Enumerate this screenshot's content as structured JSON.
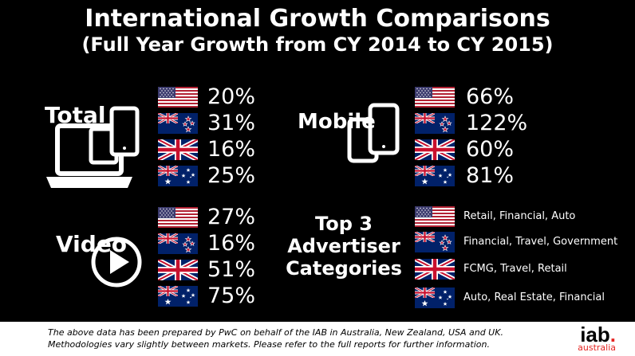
{
  "title": "International Growth Comparisons",
  "subtitle": "(Full Year Growth from CY 2014 to CY 2015)",
  "sections": {
    "total": {
      "label": "Total",
      "values": [
        "20%",
        "31%",
        "16%",
        "25%"
      ]
    },
    "mobile": {
      "label": "Mobile",
      "values": [
        "66%",
        "122%",
        "60%",
        "81%"
      ]
    },
    "video": {
      "label": "Video",
      "values": [
        "27%",
        "16%",
        "51%",
        "75%"
      ]
    },
    "advertisers": {
      "label_line1": "Top 3",
      "label_line2": "Advertiser",
      "label_line3": "Categories",
      "values": [
        "Retail, Financial, Auto",
        "Financial, Travel, Government",
        "FCMG, Travel, Retail",
        "Auto, Real Estate, Financial"
      ]
    }
  },
  "flags": [
    "us-flag",
    "nz-flag",
    "uk-flag",
    "au-flag"
  ],
  "footer": {
    "line1": "The above data has been prepared by PwC on behalf of the IAB in Australia, New Zealand, USA and UK.",
    "line2": "Methodologies vary slightly between markets. Please refer to the full reports  for further information.",
    "logo_main": "iab",
    "logo_dot": ".",
    "logo_sub": "australia"
  },
  "colors": {
    "background": "#000000",
    "footer_bg": "#ffffff",
    "logo_accent": "#e52421"
  }
}
